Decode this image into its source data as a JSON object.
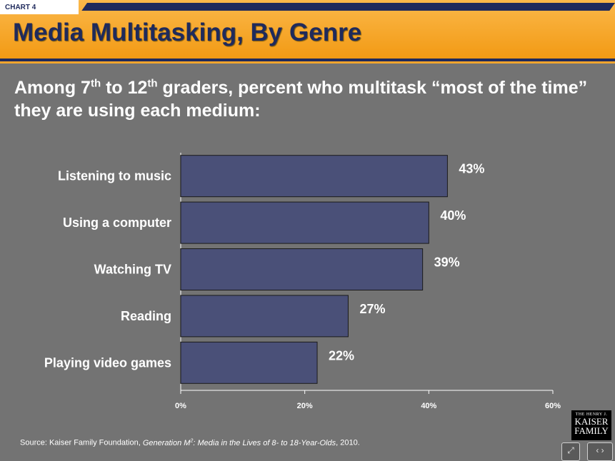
{
  "header": {
    "chart_label": "CHART 4",
    "title": "Media Multitasking, By Genre"
  },
  "subtitle": {
    "part1": "Among 7",
    "sup1": "th",
    "part2": " to 12",
    "sup2": "th",
    "part3": " graders, percent who multitask “most of the time” they are using each medium:"
  },
  "chart_data": {
    "type": "bar",
    "orientation": "horizontal",
    "categories": [
      "Listening to music",
      "Using a computer",
      "Watching TV",
      "Reading",
      "Playing video games"
    ],
    "values": [
      43,
      40,
      39,
      27,
      22
    ],
    "value_labels": [
      "43%",
      "40%",
      "39%",
      "27%",
      "22%"
    ],
    "xlim": [
      0,
      60
    ],
    "xticks": [
      0,
      20,
      40,
      60
    ],
    "xtick_labels": [
      "0%",
      "20%",
      "40%",
      "60%"
    ],
    "grid": false,
    "bar_color": "#4a5078"
  },
  "source": {
    "prefix": "Source: Kaiser Family Foundation, ",
    "title_part1": "Generation M",
    "title_sup": "2",
    "title_part2": ": Media in the Lives of 8- to 18-Year-Olds",
    "suffix": ", 2010."
  },
  "logo": {
    "line1": "THE HENRY J.",
    "line2": "KAISER",
    "line3": "FAMILY"
  },
  "nav": {
    "fullscreen_icon": "expand-icon",
    "prev_next_icon": "prev-next-icon",
    "fullscreen_glyph": "⤢",
    "prev_next_glyph": "‹ ›"
  },
  "colors": {
    "navy": "#1f2a5c",
    "orange": "#f29a14",
    "background": "#737373"
  }
}
